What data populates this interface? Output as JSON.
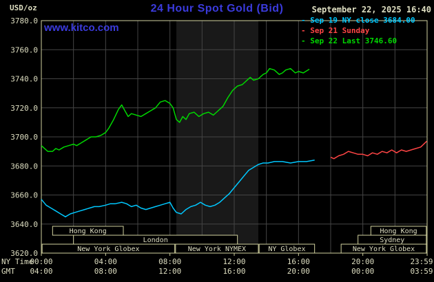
{
  "header": {
    "unit_label": "USD/oz",
    "title": "24 Hour Spot Gold (Bid)",
    "datetime": "September 22, 2025 16:40",
    "watermark": "www.kitco.com"
  },
  "axis": {
    "ny_time_label": "NY Time",
    "gmt_label": "GMT"
  },
  "legend": {
    "items": [
      {
        "label": "Sep 19 NY close 3684.00",
        "color": "#00c8ff"
      },
      {
        "label": "Sep 21 Sunday",
        "color": "#ff4545"
      },
      {
        "label": "Sep 22 Last 3746.60",
        "color": "#00d800"
      }
    ]
  },
  "colors": {
    "background": "#000000",
    "frame": "#d2d2a0",
    "text": "#dfdfc2",
    "grid": "#454545",
    "title_blue": "#3b3bdd",
    "band": "#191919"
  },
  "chart_data": {
    "type": "line",
    "title": "24 Hour Spot Gold (Bid)",
    "ylabel": "USD/oz",
    "x_axis": {
      "label": "NY Time (hours)",
      "tick_hours": [
        0,
        4,
        8,
        12,
        16,
        20,
        24
      ],
      "ticks_ny": [
        "00:00",
        "04:00",
        "08:00",
        "12:00",
        "16:00",
        "20:00",
        "23:59"
      ],
      "ticks_gmt": [
        "04:00",
        "08:00",
        "12:00",
        "16:00",
        "20:00",
        "00:00",
        "03:59"
      ]
    },
    "y_axis": {
      "min": 3620,
      "max": 3780,
      "tick_step": 20,
      "tick_labels": [
        "3620.0",
        "3640.0",
        "3660.0",
        "3680.0",
        "3700.0",
        "3720.0",
        "3740.0",
        "3760.0",
        "3780.0"
      ]
    },
    "grid": {
      "x_step_hours": 2,
      "color": "#454545"
    },
    "nymex_band": {
      "start_hour": 8.4,
      "end_hour": 13.5,
      "color": "#191919"
    },
    "series": [
      {
        "name": "Sep 19 NY close",
        "color": "#00c8ff",
        "close": 3684.0,
        "points": [
          [
            0,
            3657
          ],
          [
            0.3,
            3653
          ],
          [
            0.6,
            3651
          ],
          [
            0.9,
            3649
          ],
          [
            1.2,
            3647
          ],
          [
            1.5,
            3645
          ],
          [
            1.8,
            3647
          ],
          [
            2.1,
            3648
          ],
          [
            2.4,
            3649
          ],
          [
            2.7,
            3650
          ],
          [
            3,
            3651
          ],
          [
            3.3,
            3652
          ],
          [
            3.6,
            3652
          ],
          [
            4,
            3653
          ],
          [
            4.3,
            3654
          ],
          [
            4.6,
            3654
          ],
          [
            5,
            3655
          ],
          [
            5.3,
            3654
          ],
          [
            5.6,
            3652
          ],
          [
            5.9,
            3653
          ],
          [
            6.2,
            3651
          ],
          [
            6.5,
            3650
          ],
          [
            6.8,
            3651
          ],
          [
            7.1,
            3652
          ],
          [
            7.4,
            3653
          ],
          [
            7.7,
            3654
          ],
          [
            8,
            3655
          ],
          [
            8.2,
            3651
          ],
          [
            8.4,
            3648
          ],
          [
            8.7,
            3647
          ],
          [
            9,
            3650
          ],
          [
            9.3,
            3652
          ],
          [
            9.6,
            3653
          ],
          [
            9.9,
            3655
          ],
          [
            10.2,
            3653
          ],
          [
            10.5,
            3652
          ],
          [
            10.8,
            3653
          ],
          [
            11.1,
            3655
          ],
          [
            11.4,
            3658
          ],
          [
            11.7,
            3661
          ],
          [
            12,
            3665
          ],
          [
            12.3,
            3669
          ],
          [
            12.6,
            3673
          ],
          [
            12.9,
            3677
          ],
          [
            13.2,
            3679
          ],
          [
            13.5,
            3681
          ],
          [
            13.8,
            3682
          ],
          [
            14.1,
            3682
          ],
          [
            14.5,
            3683
          ],
          [
            15,
            3683
          ],
          [
            15.5,
            3682
          ],
          [
            16,
            3683
          ],
          [
            16.5,
            3683
          ],
          [
            17,
            3684
          ]
        ]
      },
      {
        "name": "Sep 21 Sunday",
        "color": "#ff4545",
        "points": [
          [
            18,
            3686
          ],
          [
            18.2,
            3685
          ],
          [
            18.5,
            3687
          ],
          [
            18.8,
            3688
          ],
          [
            19.1,
            3690
          ],
          [
            19.4,
            3689
          ],
          [
            19.7,
            3688
          ],
          [
            20,
            3688
          ],
          [
            20.3,
            3687
          ],
          [
            20.6,
            3689
          ],
          [
            20.9,
            3688
          ],
          [
            21.2,
            3690
          ],
          [
            21.5,
            3689
          ],
          [
            21.8,
            3691
          ],
          [
            22.1,
            3689
          ],
          [
            22.4,
            3691
          ],
          [
            22.7,
            3690
          ],
          [
            23,
            3691
          ],
          [
            23.3,
            3692
          ],
          [
            23.6,
            3693
          ],
          [
            23.98,
            3697
          ]
        ]
      },
      {
        "name": "Sep 22 Last",
        "color": "#00d800",
        "last": 3746.6,
        "points": [
          [
            0,
            3694
          ],
          [
            0.2,
            3692
          ],
          [
            0.4,
            3690
          ],
          [
            0.7,
            3690
          ],
          [
            0.9,
            3692
          ],
          [
            1.1,
            3691
          ],
          [
            1.4,
            3693
          ],
          [
            1.7,
            3694
          ],
          [
            2,
            3695
          ],
          [
            2.2,
            3694
          ],
          [
            2.5,
            3696
          ],
          [
            2.8,
            3698
          ],
          [
            3.1,
            3700
          ],
          [
            3.4,
            3700
          ],
          [
            3.7,
            3701
          ],
          [
            4,
            3703
          ],
          [
            4.2,
            3706
          ],
          [
            4.5,
            3712
          ],
          [
            4.8,
            3719
          ],
          [
            5,
            3722
          ],
          [
            5.2,
            3718
          ],
          [
            5.4,
            3714
          ],
          [
            5.6,
            3716
          ],
          [
            5.9,
            3715
          ],
          [
            6.2,
            3714
          ],
          [
            6.5,
            3716
          ],
          [
            6.8,
            3718
          ],
          [
            7.1,
            3720
          ],
          [
            7.4,
            3724
          ],
          [
            7.7,
            3725
          ],
          [
            8,
            3723
          ],
          [
            8.2,
            3720
          ],
          [
            8.4,
            3712
          ],
          [
            8.6,
            3710
          ],
          [
            8.8,
            3714
          ],
          [
            9,
            3712
          ],
          [
            9.2,
            3716
          ],
          [
            9.5,
            3717
          ],
          [
            9.8,
            3714
          ],
          [
            10.1,
            3716
          ],
          [
            10.4,
            3717
          ],
          [
            10.7,
            3715
          ],
          [
            11,
            3718
          ],
          [
            11.3,
            3721
          ],
          [
            11.6,
            3727
          ],
          [
            11.9,
            3732
          ],
          [
            12.2,
            3735
          ],
          [
            12.5,
            3736
          ],
          [
            12.8,
            3739
          ],
          [
            13,
            3741
          ],
          [
            13.2,
            3739
          ],
          [
            13.5,
            3740
          ],
          [
            13.8,
            3743
          ],
          [
            14,
            3744
          ],
          [
            14.2,
            3747
          ],
          [
            14.5,
            3746
          ],
          [
            14.8,
            3743
          ],
          [
            15,
            3744
          ],
          [
            15.2,
            3746
          ],
          [
            15.5,
            3747
          ],
          [
            15.8,
            3744
          ],
          [
            16,
            3745
          ],
          [
            16.3,
            3744
          ],
          [
            16.67,
            3746.6
          ]
        ]
      }
    ],
    "sessions": [
      {
        "row": 0,
        "label": "Hong Kong",
        "start": 0.7,
        "end": 5.1
      },
      {
        "row": 0,
        "label": "Hong Kong",
        "start": 20.5,
        "end": 23.95
      },
      {
        "row": 1,
        "label": "London",
        "start": 2.0,
        "end": 12.2
      },
      {
        "row": 1,
        "label": "Sydney",
        "start": 19.7,
        "end": 23.95
      },
      {
        "row": 2,
        "label": "New York Globex",
        "start": 0.05,
        "end": 8.3
      },
      {
        "row": 2,
        "label": "New York NYMEX",
        "start": 8.35,
        "end": 13.5
      },
      {
        "row": 2,
        "label": "NY Globex",
        "start": 13.55,
        "end": 17.0
      },
      {
        "row": 2,
        "label": "New York Globex",
        "start": 18.65,
        "end": 23.95
      }
    ]
  }
}
